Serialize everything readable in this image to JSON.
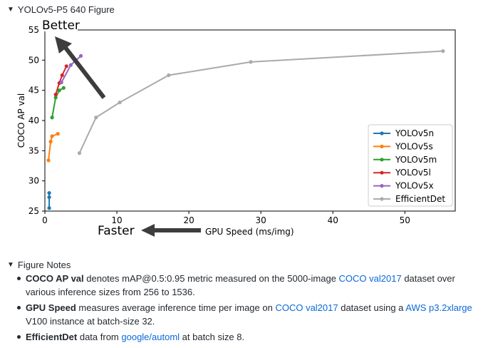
{
  "figure_summary": {
    "label": "YOLOv5-P5 640 Figure"
  },
  "notes_summary": {
    "label": "Figure Notes"
  },
  "chart_data": {
    "type": "line",
    "xlabel": "GPU Speed (ms/img)",
    "ylabel": "COCO AP val",
    "xlim": [
      0,
      57
    ],
    "ylim": [
      25,
      55
    ],
    "x_ticks": [
      0,
      10,
      20,
      30,
      40,
      50
    ],
    "y_ticks": [
      25,
      30,
      35,
      40,
      45,
      50,
      55
    ],
    "grid": false,
    "legend_position": "lower-right",
    "annotations": {
      "better": "Better",
      "faster": "Faster"
    },
    "series": [
      {
        "name": "YOLOv5n",
        "color": "#1f77b4",
        "points": [
          [
            0.6,
            28.0
          ],
          [
            0.6,
            27.3
          ],
          [
            0.6,
            25.5
          ]
        ]
      },
      {
        "name": "YOLOv5s",
        "color": "#ff7f0e",
        "points": [
          [
            0.5,
            33.4
          ],
          [
            0.8,
            36.5
          ],
          [
            1.0,
            37.4
          ],
          [
            1.8,
            37.8
          ]
        ]
      },
      {
        "name": "YOLOv5m",
        "color": "#2ca02c",
        "points": [
          [
            1.0,
            40.5
          ],
          [
            1.5,
            43.8
          ],
          [
            2.0,
            45.0
          ],
          [
            2.6,
            45.4
          ]
        ]
      },
      {
        "name": "YOLOv5l",
        "color": "#d62728",
        "points": [
          [
            1.5,
            44.3
          ],
          [
            2.0,
            46.2
          ],
          [
            2.4,
            47.5
          ],
          [
            3.0,
            49.0
          ]
        ]
      },
      {
        "name": "YOLOv5x",
        "color": "#9467bd",
        "points": [
          [
            2.3,
            46.3
          ],
          [
            3.6,
            49.2
          ],
          [
            5.0,
            50.7
          ]
        ]
      },
      {
        "name": "EfficientDet",
        "color": "#aaaaaa",
        "points": [
          [
            4.8,
            34.6
          ],
          [
            7.1,
            40.5
          ],
          [
            10.4,
            43.0
          ],
          [
            17.2,
            47.5
          ],
          [
            28.6,
            49.7
          ],
          [
            55.3,
            51.5
          ]
        ]
      }
    ]
  },
  "notes": [
    {
      "bold": "COCO AP val",
      "t1": " denotes mAP@0.5:0.95 metric measured on the 5000-image ",
      "link1": "COCO val2017",
      "t2": " dataset over various inference sizes from 256 to 1536."
    },
    {
      "bold": "GPU Speed",
      "t1": " measures average inference time per image on ",
      "link1": "COCO val2017",
      "t2": " dataset using a ",
      "link2": "AWS p3.2xlarge",
      "t3": " V100 instance at batch-size 32."
    },
    {
      "bold": "EfficientDet",
      "t1": " data from ",
      "link1": "google/automl",
      "t2": " at batch size 8."
    }
  ]
}
